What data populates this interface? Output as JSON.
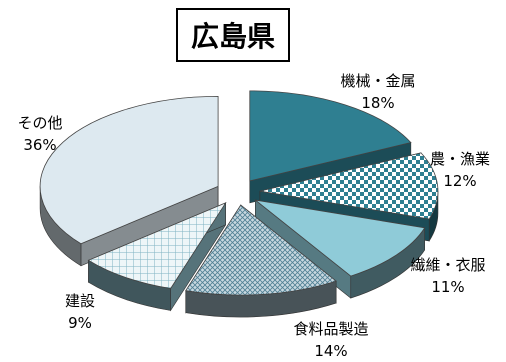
{
  "chart_data": {
    "type": "pie",
    "style": "3d-exploded",
    "title": "広島県",
    "slices": [
      {
        "label": "機械・金属",
        "value": 18,
        "value_label": "18%",
        "color": "#2f7f91",
        "pattern": "solid"
      },
      {
        "label": "農・漁業",
        "value": 12,
        "value_label": "12%",
        "color": "#2f7f91",
        "pattern": "checker"
      },
      {
        "label": "繊維・衣服",
        "value": 11,
        "value_label": "11%",
        "color": "#8fcbd8",
        "pattern": "solid"
      },
      {
        "label": "食料品製造",
        "value": 14,
        "value_label": "14%",
        "color": "#9fb8c4",
        "pattern": "crosshatch"
      },
      {
        "label": "建設",
        "value": 9,
        "value_label": "9%",
        "color": "#8fc0cc",
        "pattern": "grid"
      },
      {
        "label": "その他",
        "value": 36,
        "value_label": "36%",
        "color": "#dde9f0",
        "pattern": "solid"
      }
    ]
  }
}
